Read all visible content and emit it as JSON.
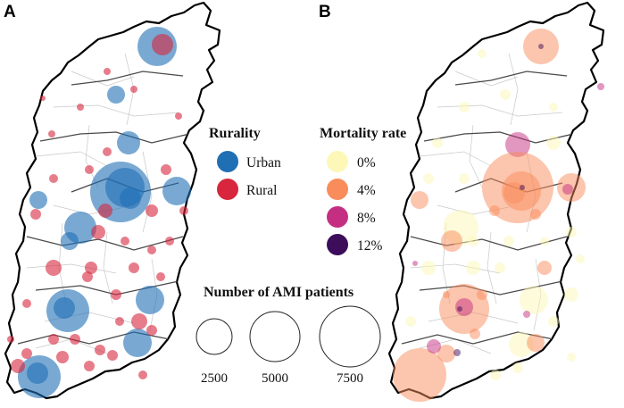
{
  "panels": [
    {
      "label": "A"
    },
    {
      "label": "B"
    }
  ],
  "rurality_legend": {
    "title": "Rurality",
    "items": [
      {
        "label": "Urban",
        "color": "#1f6fb5"
      },
      {
        "label": "Rural",
        "color": "#d7263d"
      }
    ]
  },
  "mortality_legend": {
    "title": "Mortality rate",
    "items": [
      {
        "label": "0%",
        "color": "#fdf7b8"
      },
      {
        "label": "4%",
        "color": "#f98c5b"
      },
      {
        "label": "8%",
        "color": "#c42f82"
      },
      {
        "label": "12%",
        "color": "#3d0d5c"
      }
    ]
  },
  "size_legend": {
    "title": "Number of AMI patients",
    "items": [
      {
        "label": "2500",
        "value": 2500
      },
      {
        "label": "5000",
        "value": 5000
      },
      {
        "label": "7500",
        "value": 7500
      }
    ]
  }
}
